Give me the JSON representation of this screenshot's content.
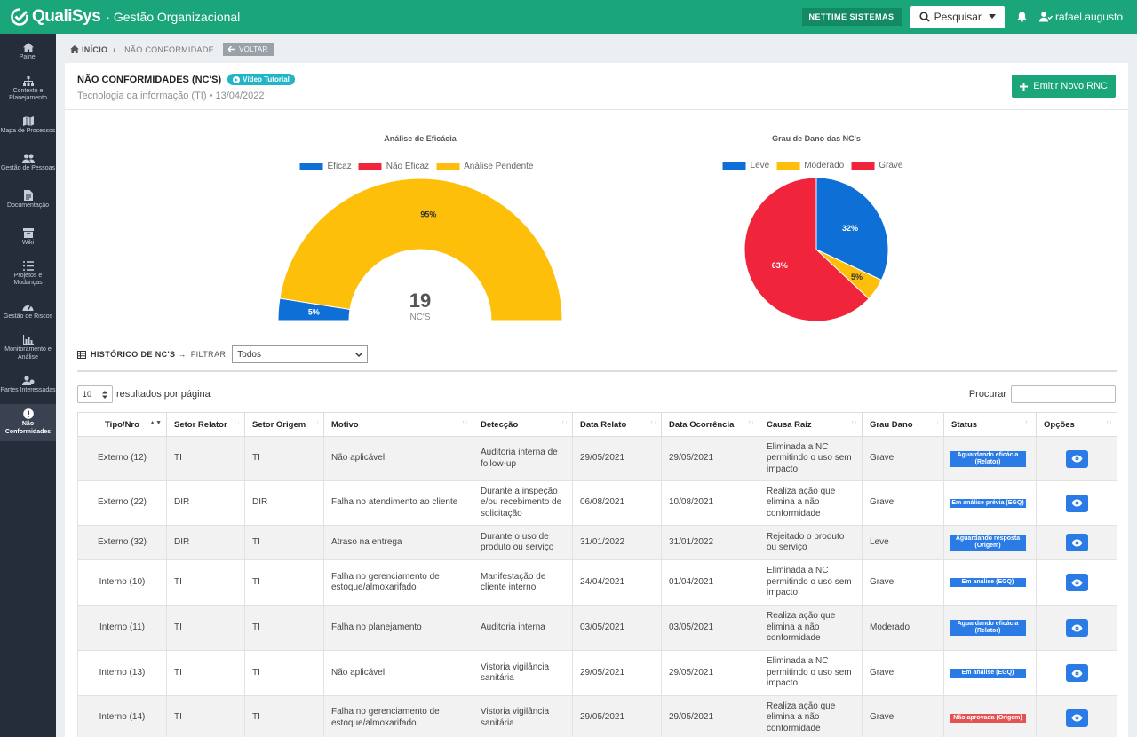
{
  "header": {
    "logo_text": "QualiSys",
    "app_subtitle": "· Gestão Organizacional",
    "org_label": "NETTIME SISTEMAS",
    "search_label": "Pesquisar",
    "user_name": "rafael.augusto"
  },
  "sidebar": {
    "items": [
      {
        "label": "Painel",
        "icon": "home-icon"
      },
      {
        "label": "Contexto e Planejamento",
        "icon": "sitemap-icon"
      },
      {
        "label": "Mapa de Processos",
        "icon": "map-icon"
      },
      {
        "label": "Gestão de Pessoas",
        "icon": "users-icon"
      },
      {
        "label": "Documentação",
        "icon": "file-icon"
      },
      {
        "label": "Wiki",
        "icon": "archive-icon"
      },
      {
        "label": "Projetos e Mudanças",
        "icon": "list-icon"
      },
      {
        "label": "Gestão de Riscos",
        "icon": "gauge-icon"
      },
      {
        "label": "Monitoramento e Análise",
        "icon": "bar-chart-icon"
      },
      {
        "label": "Partes Interessadas",
        "icon": "user-group-icon"
      },
      {
        "label": "Não Conformidades",
        "icon": "alert-icon"
      }
    ]
  },
  "breadcrumb": {
    "home": "INÍCIO",
    "current": "NÃO CONFORMIDADE",
    "back": "VOLTAR"
  },
  "page": {
    "title": "NÃO CONFORMIDADES (NC'S)",
    "video_badge": "Vídeo Tutorial",
    "subtitle": "Tecnologia da informação (TI) • 13/04/2022",
    "emit_button": "Emitir Novo RNC"
  },
  "chart_data": [
    {
      "type": "pie",
      "variant": "half-donut",
      "title": "Análise de Eficácia",
      "legend_position": "top",
      "center_value": "19",
      "center_label": "NC'S",
      "labels": [
        "Eficaz",
        "Não Eficaz",
        "Análise Pendente"
      ],
      "values": [
        5,
        0,
        95
      ],
      "value_labels": [
        "5%",
        "",
        "95%"
      ],
      "colors": [
        "#0e6fd6",
        "#f0243a",
        "#fdbf0a"
      ]
    },
    {
      "type": "pie",
      "title": "Grau de Dano das NC's",
      "legend_position": "top",
      "labels": [
        "Leve",
        "Moderado",
        "Grave"
      ],
      "values": [
        32,
        5,
        63
      ],
      "value_labels": [
        "32%",
        "5%",
        "63%"
      ],
      "colors": [
        "#0e6fd6",
        "#fdbf0a",
        "#f0243a"
      ]
    }
  ],
  "history": {
    "title": "HISTÓRICO DE NC'S →",
    "filter_label": "FILTRAR:",
    "filter_value": "Todos",
    "page_length": "10",
    "page_length_label": "resultados por página",
    "search_label": "Procurar"
  },
  "table": {
    "columns": [
      "Tipo/Nro",
      "Setor Relator",
      "Setor Origem",
      "Motivo",
      "Detecção",
      "Data Relato",
      "Data Ocorrência",
      "Causa Raiz",
      "Grau Dano",
      "Status",
      "Opções"
    ],
    "rows": [
      {
        "tipo": "Externo (12)",
        "relator": "TI",
        "origem": "TI",
        "motivo": "Não aplicável",
        "deteccao": "Auditoria interna de follow-up",
        "data_relato": "29/05/2021",
        "data_ocorrencia": "29/05/2021",
        "causa": "Eliminada a NC permitindo o uso sem impacto",
        "grau": "Grave",
        "status": "Aguardando eficácia (Relator)",
        "status_color": "blue"
      },
      {
        "tipo": "Externo (22)",
        "relator": "DIR",
        "origem": "DIR",
        "motivo": "Falha no atendimento ao cliente",
        "deteccao": "Durante a inspeção e/ou recebimento de solicitação",
        "data_relato": "06/08/2021",
        "data_ocorrencia": "10/08/2021",
        "causa": "Realiza ação que elimina a não conformidade",
        "grau": "Grave",
        "status": "Em análise prévia (EGQ)",
        "status_color": "blue"
      },
      {
        "tipo": "Externo (32)",
        "relator": "DIR",
        "origem": "TI",
        "motivo": "Atraso na entrega",
        "deteccao": "Durante o uso de produto ou serviço",
        "data_relato": "31/01/2022",
        "data_ocorrencia": "31/01/2022",
        "causa": "Rejeitado o produto ou serviço",
        "grau": "Leve",
        "status": "Aguardando resposta (Origem)",
        "status_color": "blue"
      },
      {
        "tipo": "Interno (10)",
        "relator": "TI",
        "origem": "TI",
        "motivo": "Falha no gerenciamento de estoque/almoxarifado",
        "deteccao": "Manifestação de cliente interno",
        "data_relato": "24/04/2021",
        "data_ocorrencia": "01/04/2021",
        "causa": "Eliminada a NC permitindo o uso sem impacto",
        "grau": "Grave",
        "status": "Em análise (EGQ)",
        "status_color": "blue"
      },
      {
        "tipo": "Interno (11)",
        "relator": "TI",
        "origem": "TI",
        "motivo": "Falha no planejamento",
        "deteccao": "Auditoria interna",
        "data_relato": "03/05/2021",
        "data_ocorrencia": "03/05/2021",
        "causa": "Realiza ação que elimina a não conformidade",
        "grau": "Moderado",
        "status": "Aguardando eficácia (Relator)",
        "status_color": "blue"
      },
      {
        "tipo": "Interno (13)",
        "relator": "TI",
        "origem": "TI",
        "motivo": "Não aplicável",
        "deteccao": "Vistoria vigilância sanitária",
        "data_relato": "29/05/2021",
        "data_ocorrencia": "29/05/2021",
        "causa": "Eliminada a NC permitindo o uso sem impacto",
        "grau": "Grave",
        "status": "Em análise (EGQ)",
        "status_color": "blue"
      },
      {
        "tipo": "Interno (14)",
        "relator": "TI",
        "origem": "TI",
        "motivo": "Falha no gerenciamento de estoque/almoxarifado",
        "deteccao": "Vistoria vigilância sanitária",
        "data_relato": "29/05/2021",
        "data_ocorrencia": "29/05/2021",
        "causa": "Realiza ação que elimina a não conformidade",
        "grau": "Grave",
        "status": "Não aprovada (Origem)",
        "status_color": "red"
      }
    ]
  }
}
